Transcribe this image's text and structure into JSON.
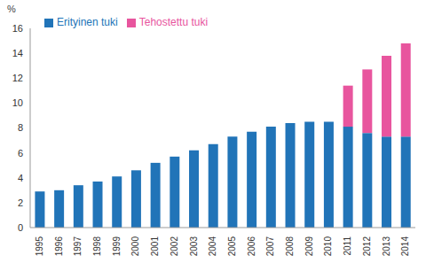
{
  "chart_data": {
    "type": "bar",
    "y_label": "%",
    "categories": [
      "1995",
      "1996",
      "1997",
      "1998",
      "1999",
      "2000",
      "2001",
      "2002",
      "2003",
      "2004",
      "2005",
      "2006",
      "2007",
      "2008",
      "2009",
      "2010",
      "2011",
      "2012",
      "2013",
      "2014"
    ],
    "series": [
      {
        "name": "Erityinen tuki",
        "color": "#2174b8",
        "values": [
          2.9,
          3.0,
          3.4,
          3.7,
          4.1,
          4.6,
          5.2,
          5.7,
          6.2,
          6.7,
          7.3,
          7.7,
          8.1,
          8.4,
          8.5,
          8.5,
          8.1,
          7.6,
          7.3,
          7.3
        ]
      },
      {
        "name": "Tehostettu tuki",
        "color": "#e8559e",
        "values": [
          null,
          null,
          null,
          null,
          null,
          null,
          null,
          null,
          null,
          null,
          null,
          null,
          null,
          null,
          null,
          null,
          3.3,
          5.1,
          6.5,
          7.5
        ]
      }
    ],
    "ylim": [
      0,
      16
    ],
    "yticks": [
      0,
      2,
      4,
      6,
      8,
      10,
      12,
      14,
      16
    ],
    "stacked": true,
    "legend": "upper left",
    "grid": false
  }
}
